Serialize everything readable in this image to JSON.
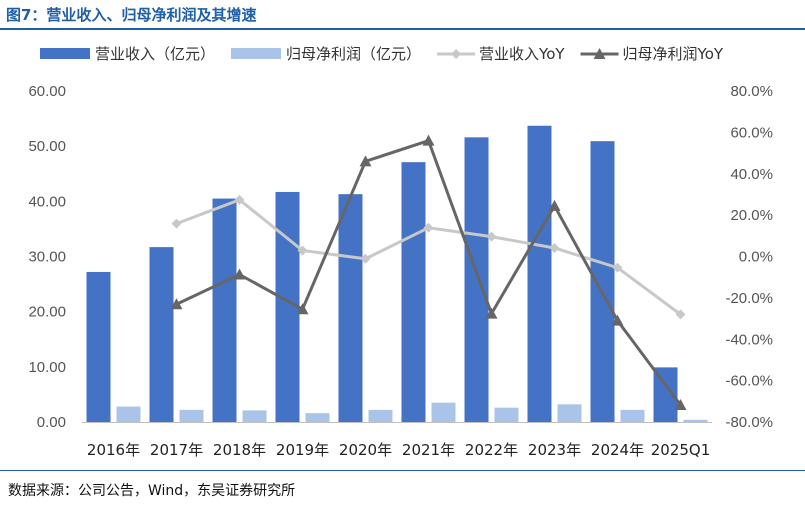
{
  "figure": {
    "title": "图7：营业收入、归母净利润及其增速",
    "source": "数据来源：公司公告，Wind，东吴证券研究所"
  },
  "chart_data": {
    "type": "bar",
    "categories": [
      "2016年",
      "2017年",
      "2018年",
      "2019年",
      "2020年",
      "2021年",
      "2022年",
      "2023年",
      "2024年",
      "2025Q1"
    ],
    "y_left": {
      "ylim": [
        0,
        60
      ],
      "ticks": [
        "0.00",
        "10.00",
        "20.00",
        "30.00",
        "40.00",
        "50.00",
        "60.00"
      ]
    },
    "y_right": {
      "ylim": [
        -80,
        80
      ],
      "ticks": [
        "-80.0%",
        "-60.0%",
        "-40.0%",
        "-20.0%",
        "0.0%",
        "20.0%",
        "40.0%",
        "60.0%",
        "80.0%"
      ]
    },
    "series": [
      {
        "name": "营业收入（亿元）",
        "type": "bar",
        "axis": "left",
        "color": "#4472c4",
        "values": [
          27.2,
          31.7,
          40.5,
          41.7,
          41.3,
          47.1,
          51.6,
          53.7,
          50.9,
          9.9
        ]
      },
      {
        "name": "归母净利润（亿元）",
        "type": "bar",
        "axis": "left",
        "color": "#a9c4e8",
        "values": [
          2.8,
          2.2,
          2.1,
          1.6,
          2.2,
          3.5,
          2.6,
          3.2,
          2.2,
          0.4
        ]
      },
      {
        "name": "营业收入YoY",
        "type": "line",
        "axis": "right",
        "color": "#c8c8c8",
        "marker": "diamond",
        "values": [
          null,
          15.9,
          27.4,
          2.9,
          -1.1,
          13.9,
          9.6,
          4.1,
          -5.4,
          -28.0
        ]
      },
      {
        "name": "归母净利润YoY",
        "type": "line",
        "axis": "right",
        "color": "#666666",
        "marker": "triangle",
        "values": [
          null,
          -23.1,
          -8.7,
          -25.5,
          46.0,
          56.0,
          -27.6,
          24.5,
          -31.0,
          -71.8
        ]
      }
    ],
    "legend_position": "top"
  }
}
